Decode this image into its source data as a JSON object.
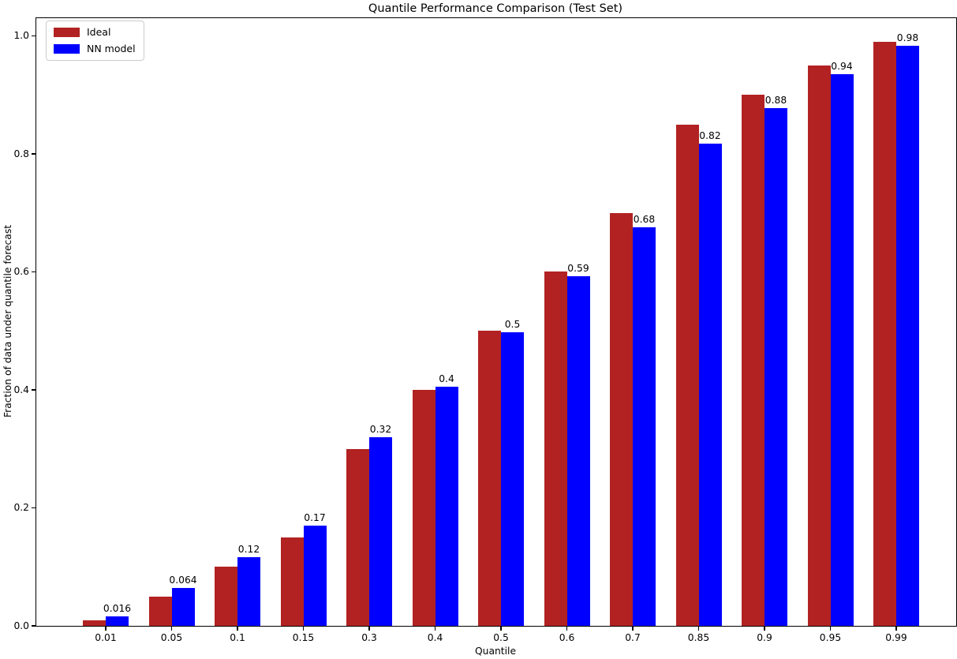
{
  "chart_data": {
    "type": "bar",
    "title": "Quantile Performance Comparison (Test Set)",
    "xlabel": "Quantile",
    "ylabel": "Fraction of data under quantile forecast",
    "categories": [
      "0.01",
      "0.05",
      "0.1",
      "0.15",
      "0.3",
      "0.4",
      "0.5",
      "0.6",
      "0.7",
      "0.85",
      "0.9",
      "0.95",
      "0.99"
    ],
    "series": [
      {
        "name": "Ideal",
        "color": "#b22222",
        "values": [
          0.01,
          0.05,
          0.1,
          0.15,
          0.3,
          0.4,
          0.5,
          0.6,
          0.7,
          0.85,
          0.9,
          0.95,
          0.99
        ]
      },
      {
        "name": "NN model",
        "color": "#0000ff",
        "values": [
          0.016,
          0.064,
          0.117,
          0.17,
          0.32,
          0.405,
          0.497,
          0.592,
          0.675,
          0.818,
          0.878,
          0.935,
          0.983
        ],
        "value_labels": [
          "0.016",
          "0.064",
          "0.12",
          "0.17",
          "0.32",
          "0.4",
          "0.5",
          "0.59",
          "0.68",
          "0.82",
          "0.88",
          "0.94",
          "0.98"
        ]
      }
    ],
    "yticks": [
      "0.0",
      "0.2",
      "0.4",
      "0.6",
      "0.8",
      "1.0"
    ],
    "ylim": [
      0,
      1.03
    ],
    "legend_position": "upper left",
    "grid": false,
    "text_color": "#000000",
    "spine_color": "#000000"
  }
}
